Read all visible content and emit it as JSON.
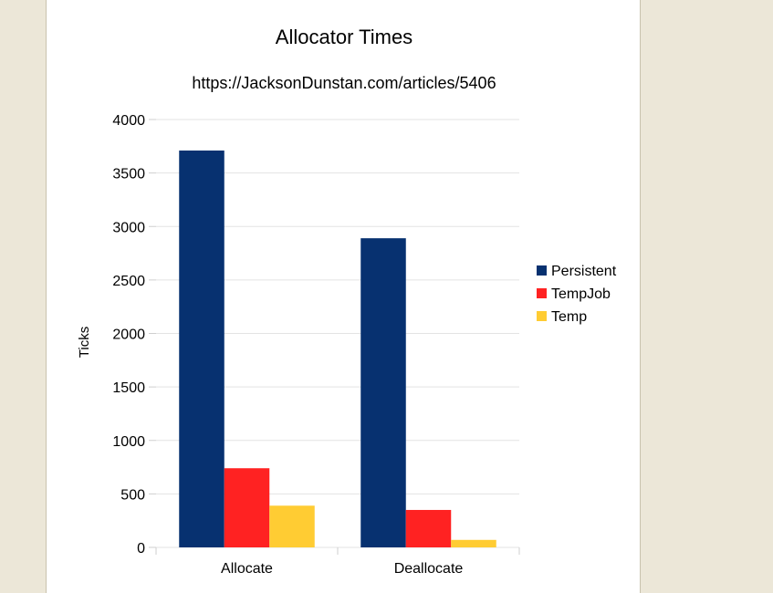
{
  "chart_data": {
    "type": "bar",
    "title": "Allocator Times",
    "subtitle": "https://JacksonDunstan.com/articles/5406",
    "xlabel": "",
    "ylabel": "Ticks",
    "categories": [
      "Allocate",
      "Deallocate"
    ],
    "series": [
      {
        "name": "Persistent",
        "color": "#073170",
        "values": [
          3710,
          2890
        ]
      },
      {
        "name": "TempJob",
        "color": "#ff2222",
        "values": [
          740,
          350
        ]
      },
      {
        "name": "Temp",
        "color": "#ffcc33",
        "values": [
          390,
          70
        ]
      }
    ],
    "ylim": [
      0,
      4000
    ],
    "yticks": [
      "0",
      "500",
      "1000",
      "1500",
      "2000",
      "2500",
      "3000",
      "3500",
      "4000"
    ],
    "grid": true,
    "legend": "right"
  }
}
